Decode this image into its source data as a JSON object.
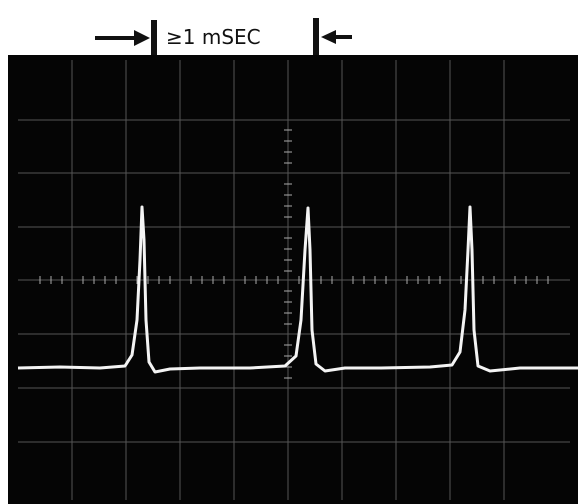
{
  "annotation": "≥1 mSEC"
}
